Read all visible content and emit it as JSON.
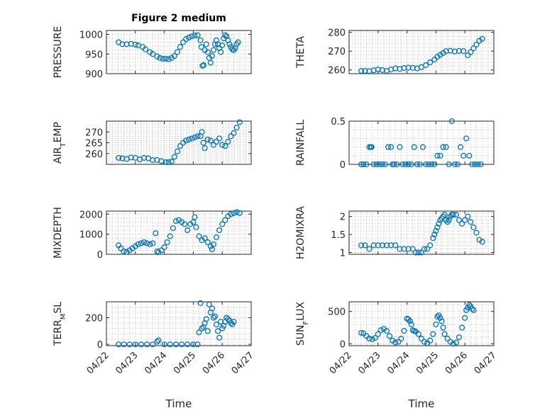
{
  "title": "Figure 2 medium",
  "x_axis": {
    "label": "Time",
    "tick_labels": [
      "04/22",
      "04/23",
      "04/24",
      "04/25",
      "04/26",
      "04/27"
    ],
    "range": [
      0,
      5
    ]
  },
  "colors": {
    "marker": "#0072bd",
    "grid": "#c8c8c8",
    "axis": "#262626"
  },
  "chart_data": [
    {
      "type": "scatter",
      "ylabel": "PRESSURE",
      "ylabel_sub": "",
      "ylabel_sub_text": "",
      "ylim": [
        900,
        1010
      ],
      "yticks": [
        900,
        950,
        1000
      ],
      "x": [
        0.42,
        0.55,
        0.7,
        0.85,
        1.0,
        1.1,
        1.25,
        1.35,
        1.5,
        1.6,
        1.75,
        1.85,
        1.95,
        2.05,
        2.15,
        2.25,
        2.35,
        2.45,
        2.55,
        2.65,
        2.75,
        2.85,
        2.95,
        3.05,
        3.15,
        3.25,
        3.28,
        3.32,
        3.36,
        3.4,
        3.45,
        3.5,
        3.55,
        3.6,
        3.65,
        3.7,
        3.75,
        3.8,
        3.85,
        3.9,
        3.95,
        4.0,
        4.05,
        4.1,
        4.15,
        4.2,
        4.25,
        4.3,
        4.35,
        4.4,
        4.45,
        4.5,
        4.55
      ],
      "y": [
        980,
        975,
        975,
        976,
        974,
        972,
        968,
        962,
        955,
        950,
        944,
        940,
        938,
        938,
        937,
        940,
        945,
        955,
        968,
        980,
        988,
        992,
        995,
        997,
        998,
        985,
        968,
        920,
        922,
        960,
        975,
        955,
        940,
        928,
        945,
        960,
        975,
        985,
        975,
        965,
        955,
        972,
        990,
        998,
        995,
        985,
        975,
        968,
        962,
        960,
        965,
        975,
        980
      ]
    },
    {
      "type": "scatter",
      "ylabel": "THETA",
      "ylabel_sub": "",
      "ylabel_sub_text": "",
      "ylim": [
        258,
        281
      ],
      "yticks": [
        260,
        270,
        280
      ],
      "x": [
        0.42,
        0.55,
        0.7,
        0.85,
        1.0,
        1.15,
        1.3,
        1.45,
        1.6,
        1.75,
        1.9,
        2.05,
        2.2,
        2.35,
        2.5,
        2.65,
        2.8,
        2.95,
        3.05,
        3.15,
        3.25,
        3.35,
        3.5,
        3.65,
        3.8,
        3.95,
        4.1,
        4.2,
        4.3,
        4.4,
        4.5,
        4.6
      ],
      "y": [
        259.5,
        259.5,
        259.4,
        259.8,
        260.2,
        259.9,
        259.5,
        260.2,
        260.8,
        260.5,
        261.0,
        261.2,
        261.1,
        260.8,
        261.5,
        262.5,
        264.0,
        265.5,
        267.0,
        268.0,
        269.0,
        270.0,
        270.2,
        269.8,
        270.1,
        270.0,
        267.8,
        269.5,
        271.5,
        273.5,
        275.5,
        276.5
      ]
    },
    {
      "type": "scatter",
      "ylabel": "AIR",
      "ylabel_sub": "T",
      "ylabel_sub_text": "EMP",
      "ylim": [
        255,
        275
      ],
      "yticks": [
        260,
        265,
        270
      ],
      "x": [
        0.42,
        0.55,
        0.7,
        0.85,
        1.0,
        1.15,
        1.3,
        1.45,
        1.6,
        1.75,
        1.9,
        2.05,
        2.15,
        2.25,
        2.35,
        2.45,
        2.55,
        2.65,
        2.75,
        2.85,
        2.95,
        3.05,
        3.15,
        3.25,
        3.3,
        3.35,
        3.4,
        3.5,
        3.6,
        3.7,
        3.8,
        3.9,
        4.0,
        4.1,
        4.2,
        4.3,
        4.4,
        4.5,
        4.6
      ],
      "y": [
        258.0,
        257.8,
        257.5,
        258.2,
        258.0,
        257.3,
        258.0,
        257.8,
        257.0,
        257.0,
        256.5,
        256.0,
        256.0,
        256.3,
        258.5,
        261.0,
        263.5,
        265.0,
        266.0,
        266.5,
        267.0,
        267.5,
        268.0,
        268.0,
        270.0,
        265.0,
        262.5,
        266.5,
        266.0,
        264.0,
        265.5,
        267.0,
        264.0,
        263.5,
        265.5,
        268.0,
        269.5,
        272.0,
        274.5
      ]
    },
    {
      "type": "scatter",
      "ylabel": "RAINFALL",
      "ylabel_sub": "",
      "ylabel_sub_text": "",
      "ylim": [
        0,
        0.5
      ],
      "yticks": [
        0,
        0.5
      ],
      "x": [
        0.42,
        0.5,
        0.6,
        0.7,
        0.75,
        0.78,
        0.85,
        0.95,
        1.05,
        1.15,
        1.25,
        1.35,
        1.45,
        1.5,
        1.55,
        1.65,
        1.75,
        1.85,
        1.95,
        2.05,
        2.15,
        2.25,
        2.35,
        2.45,
        2.55,
        2.65,
        2.75,
        2.85,
        2.95,
        3.05,
        3.15,
        3.25,
        3.35,
        3.45,
        3.55,
        3.65,
        3.75,
        3.85,
        3.95,
        4.05,
        4.15,
        4.25,
        4.35,
        4.45,
        4.55
      ],
      "y": [
        0,
        0,
        0,
        0.2,
        0.2,
        0.2,
        0,
        0,
        0,
        0,
        0,
        0.2,
        0.2,
        0,
        0,
        0,
        0.2,
        0,
        0,
        0,
        0,
        0.2,
        0,
        0,
        0.2,
        0,
        0,
        0,
        0,
        0.1,
        0.1,
        0.2,
        0.2,
        0,
        0.5,
        0,
        0,
        0.2,
        0.1,
        0.3,
        0.1,
        0,
        0,
        0,
        0
      ]
    },
    {
      "type": "scatter",
      "ylabel": "MIXDEPTH",
      "ylabel_sub": "",
      "ylabel_sub_text": "",
      "ylim": [
        0,
        2150
      ],
      "yticks": [
        0,
        1000,
        2000
      ],
      "x": [
        0.42,
        0.5,
        0.6,
        0.7,
        0.8,
        0.9,
        1.0,
        1.1,
        1.2,
        1.3,
        1.4,
        1.5,
        1.6,
        1.7,
        1.75,
        1.8,
        1.9,
        2.0,
        2.1,
        2.2,
        2.3,
        2.4,
        2.5,
        2.6,
        2.7,
        2.8,
        2.9,
        3.0,
        3.05,
        3.1,
        3.2,
        3.3,
        3.4,
        3.5,
        3.6,
        3.65,
        3.7,
        3.8,
        3.9,
        4.0,
        4.1,
        4.2,
        4.3,
        4.4,
        4.5,
        4.6
      ],
      "y": [
        450,
        300,
        150,
        120,
        200,
        300,
        400,
        500,
        550,
        600,
        550,
        500,
        550,
        1050,
        150,
        100,
        200,
        350,
        600,
        900,
        1300,
        1650,
        1700,
        1600,
        1500,
        1200,
        1500,
        1600,
        1850,
        1350,
        900,
        700,
        800,
        600,
        400,
        250,
        500,
        850,
        1200,
        1500,
        1700,
        1900,
        2000,
        2050,
        2100,
        2050
      ]
    },
    {
      "type": "scatter",
      "ylabel": "H2OMIXRA",
      "ylabel_sub": "",
      "ylabel_sub_text": "",
      "ylim": [
        0.95,
        2.15
      ],
      "yticks": [
        1,
        1.5,
        2
      ],
      "x": [
        0.42,
        0.55,
        0.7,
        0.85,
        1.0,
        1.15,
        1.3,
        1.45,
        1.6,
        1.75,
        1.9,
        2.05,
        2.2,
        2.3,
        2.4,
        2.5,
        2.6,
        2.7,
        2.8,
        2.9,
        2.95,
        3.0,
        3.05,
        3.1,
        3.15,
        3.2,
        3.25,
        3.3,
        3.35,
        3.4,
        3.45,
        3.5,
        3.55,
        3.6,
        3.7,
        3.8,
        3.9,
        4.0,
        4.1,
        4.2,
        4.3,
        4.4,
        4.5,
        4.6
      ],
      "y": [
        1.2,
        1.2,
        1.1,
        1.2,
        1.2,
        1.2,
        1.2,
        1.2,
        1.2,
        1.1,
        1.1,
        1.1,
        1.1,
        1.0,
        1.0,
        1.0,
        1.1,
        1.1,
        1.2,
        1.4,
        1.5,
        1.6,
        1.7,
        1.8,
        1.9,
        1.95,
        2.0,
        2.05,
        1.9,
        1.85,
        1.9,
        2.0,
        2.05,
        2.05,
        2.05,
        1.9,
        1.8,
        1.9,
        2.0,
        1.85,
        1.7,
        1.55,
        1.35,
        1.3
      ]
    },
    {
      "type": "scatter",
      "ylabel": "TERR",
      "ylabel_sub": "M",
      "ylabel_sub_text": "SL",
      "ylim": [
        -10,
        320
      ],
      "yticks": [
        0,
        200
      ],
      "x": [
        0.42,
        0.6,
        0.8,
        1.0,
        1.2,
        1.4,
        1.6,
        1.75,
        1.8,
        2.0,
        2.2,
        2.4,
        2.6,
        2.8,
        3.0,
        3.15,
        3.2,
        3.25,
        3.3,
        3.35,
        3.4,
        3.45,
        3.5,
        3.55,
        3.6,
        3.65,
        3.7,
        3.75,
        3.8,
        3.85,
        3.9,
        3.95,
        4.0,
        4.05,
        4.1,
        4.15,
        4.2,
        4.25,
        4.3,
        4.35,
        4.4
      ],
      "y": [
        0,
        0,
        0,
        0,
        0,
        0,
        0,
        20,
        30,
        0,
        0,
        0,
        0,
        0,
        0,
        0,
        90,
        310,
        120,
        130,
        160,
        190,
        100,
        300,
        240,
        270,
        200,
        210,
        150,
        100,
        50,
        170,
        120,
        140,
        170,
        200,
        190,
        180,
        160,
        150,
        170
      ]
    },
    {
      "type": "scatter",
      "ylabel": "SUN",
      "ylabel_sub": "F",
      "ylabel_sub_text": "LUX",
      "ylim": [
        -30,
        650
      ],
      "yticks": [
        0,
        500
      ],
      "x": [
        0.42,
        0.5,
        0.6,
        0.7,
        0.8,
        0.9,
        1.0,
        1.1,
        1.2,
        1.3,
        1.4,
        1.5,
        1.6,
        1.7,
        1.8,
        1.9,
        2.0,
        2.05,
        2.1,
        2.15,
        2.2,
        2.25,
        2.3,
        2.4,
        2.5,
        2.6,
        2.7,
        2.8,
        2.9,
        3.0,
        3.05,
        3.1,
        3.15,
        3.2,
        3.25,
        3.3,
        3.4,
        3.5,
        3.6,
        3.7,
        3.8,
        3.9,
        4.0,
        4.05,
        4.1,
        4.15,
        4.2,
        4.25,
        4.3
      ],
      "y": [
        170,
        160,
        120,
        80,
        70,
        90,
        150,
        210,
        230,
        200,
        120,
        50,
        20,
        30,
        80,
        200,
        390,
        380,
        350,
        300,
        210,
        200,
        190,
        150,
        80,
        30,
        10,
        50,
        150,
        300,
        420,
        440,
        400,
        350,
        250,
        150,
        80,
        30,
        0,
        20,
        100,
        250,
        400,
        520,
        560,
        600,
        580,
        540,
        520
      ]
    }
  ]
}
